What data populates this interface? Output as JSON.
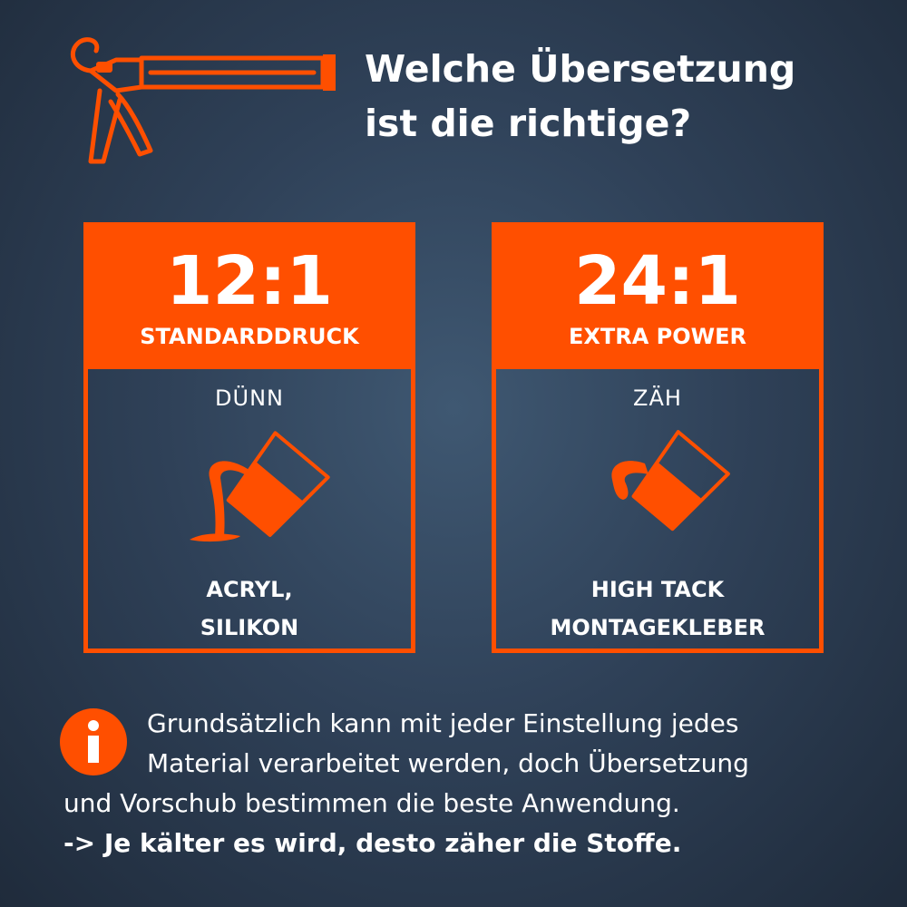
{
  "colors": {
    "accent": "#ff4f00",
    "background": "#2f4158",
    "text": "#ffffff"
  },
  "header": {
    "icon": "caulking-gun-icon",
    "title_line1": "Welche Übersetzung",
    "title_line2": "ist die richtige?"
  },
  "cards": [
    {
      "ratio": "12:1",
      "mode": "STANDARDDRUCK",
      "consistency": "DÜNN",
      "icon": "pouring-thin-liquid-icon",
      "materials_line1": "ACRYL,",
      "materials_line2": "SILIKON"
    },
    {
      "ratio": "24:1",
      "mode": "EXTRA POWER",
      "consistency": "ZÄH",
      "icon": "pouring-thick-liquid-icon",
      "materials_line1": "HIGH TACK",
      "materials_line2": "MONTAGEKLEBER"
    }
  ],
  "info": {
    "icon": "info-icon",
    "line1": "Grundsätzlich kann mit jeder Einstellung jedes",
    "line2": "Material verarbeitet werden, doch Übersetzung",
    "line3": "und Vorschub bestimmen die beste Anwendung.",
    "line4": "-> Je kälter es wird, desto zäher die Stoffe."
  }
}
